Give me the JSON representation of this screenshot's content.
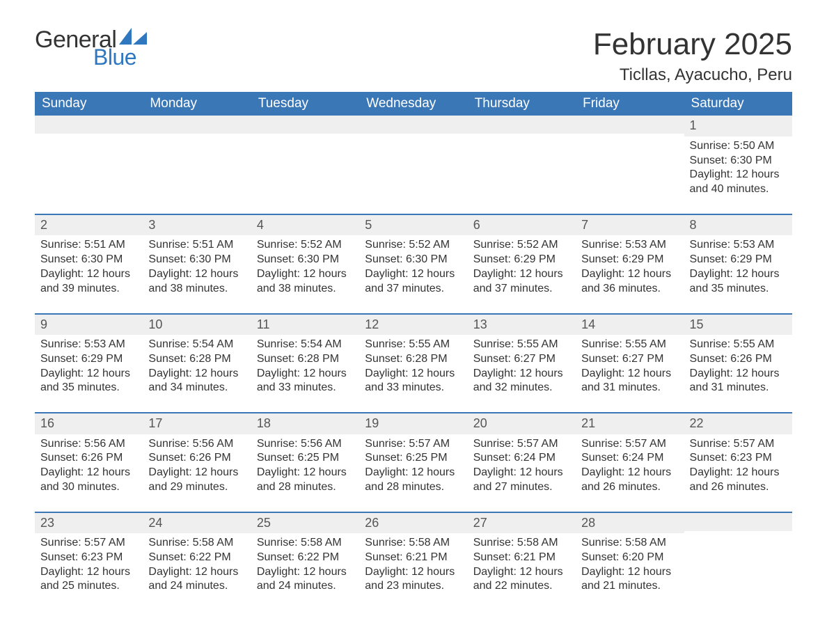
{
  "logo": {
    "word1": "General",
    "word2": "Blue"
  },
  "title": "February 2025",
  "location": "Ticllas, Ayacucho, Peru",
  "colors": {
    "header_bg": "#3a77b7",
    "header_text": "#ffffff",
    "row_border": "#3a77b7",
    "daynum_bg": "#efefef",
    "text": "#333333",
    "logo_blue": "#2f78bf",
    "page_bg": "#ffffff"
  },
  "typography": {
    "title_fontsize": 44,
    "location_fontsize": 24,
    "dayheader_fontsize": 19,
    "cell_fontsize": 16,
    "daynum_fontsize": 18,
    "logo_fontsize": 34
  },
  "day_headers": [
    "Sunday",
    "Monday",
    "Tuesday",
    "Wednesday",
    "Thursday",
    "Friday",
    "Saturday"
  ],
  "weeks": [
    [
      {
        "day": "",
        "sunrise": "",
        "sunset": "",
        "daylight1": "",
        "daylight2": ""
      },
      {
        "day": "",
        "sunrise": "",
        "sunset": "",
        "daylight1": "",
        "daylight2": ""
      },
      {
        "day": "",
        "sunrise": "",
        "sunset": "",
        "daylight1": "",
        "daylight2": ""
      },
      {
        "day": "",
        "sunrise": "",
        "sunset": "",
        "daylight1": "",
        "daylight2": ""
      },
      {
        "day": "",
        "sunrise": "",
        "sunset": "",
        "daylight1": "",
        "daylight2": ""
      },
      {
        "day": "",
        "sunrise": "",
        "sunset": "",
        "daylight1": "",
        "daylight2": ""
      },
      {
        "day": "1",
        "sunrise": "Sunrise: 5:50 AM",
        "sunset": "Sunset: 6:30 PM",
        "daylight1": "Daylight: 12 hours",
        "daylight2": "and 40 minutes."
      }
    ],
    [
      {
        "day": "2",
        "sunrise": "Sunrise: 5:51 AM",
        "sunset": "Sunset: 6:30 PM",
        "daylight1": "Daylight: 12 hours",
        "daylight2": "and 39 minutes."
      },
      {
        "day": "3",
        "sunrise": "Sunrise: 5:51 AM",
        "sunset": "Sunset: 6:30 PM",
        "daylight1": "Daylight: 12 hours",
        "daylight2": "and 38 minutes."
      },
      {
        "day": "4",
        "sunrise": "Sunrise: 5:52 AM",
        "sunset": "Sunset: 6:30 PM",
        "daylight1": "Daylight: 12 hours",
        "daylight2": "and 38 minutes."
      },
      {
        "day": "5",
        "sunrise": "Sunrise: 5:52 AM",
        "sunset": "Sunset: 6:30 PM",
        "daylight1": "Daylight: 12 hours",
        "daylight2": "and 37 minutes."
      },
      {
        "day": "6",
        "sunrise": "Sunrise: 5:52 AM",
        "sunset": "Sunset: 6:29 PM",
        "daylight1": "Daylight: 12 hours",
        "daylight2": "and 37 minutes."
      },
      {
        "day": "7",
        "sunrise": "Sunrise: 5:53 AM",
        "sunset": "Sunset: 6:29 PM",
        "daylight1": "Daylight: 12 hours",
        "daylight2": "and 36 minutes."
      },
      {
        "day": "8",
        "sunrise": "Sunrise: 5:53 AM",
        "sunset": "Sunset: 6:29 PM",
        "daylight1": "Daylight: 12 hours",
        "daylight2": "and 35 minutes."
      }
    ],
    [
      {
        "day": "9",
        "sunrise": "Sunrise: 5:53 AM",
        "sunset": "Sunset: 6:29 PM",
        "daylight1": "Daylight: 12 hours",
        "daylight2": "and 35 minutes."
      },
      {
        "day": "10",
        "sunrise": "Sunrise: 5:54 AM",
        "sunset": "Sunset: 6:28 PM",
        "daylight1": "Daylight: 12 hours",
        "daylight2": "and 34 minutes."
      },
      {
        "day": "11",
        "sunrise": "Sunrise: 5:54 AM",
        "sunset": "Sunset: 6:28 PM",
        "daylight1": "Daylight: 12 hours",
        "daylight2": "and 33 minutes."
      },
      {
        "day": "12",
        "sunrise": "Sunrise: 5:55 AM",
        "sunset": "Sunset: 6:28 PM",
        "daylight1": "Daylight: 12 hours",
        "daylight2": "and 33 minutes."
      },
      {
        "day": "13",
        "sunrise": "Sunrise: 5:55 AM",
        "sunset": "Sunset: 6:27 PM",
        "daylight1": "Daylight: 12 hours",
        "daylight2": "and 32 minutes."
      },
      {
        "day": "14",
        "sunrise": "Sunrise: 5:55 AM",
        "sunset": "Sunset: 6:27 PM",
        "daylight1": "Daylight: 12 hours",
        "daylight2": "and 31 minutes."
      },
      {
        "day": "15",
        "sunrise": "Sunrise: 5:55 AM",
        "sunset": "Sunset: 6:26 PM",
        "daylight1": "Daylight: 12 hours",
        "daylight2": "and 31 minutes."
      }
    ],
    [
      {
        "day": "16",
        "sunrise": "Sunrise: 5:56 AM",
        "sunset": "Sunset: 6:26 PM",
        "daylight1": "Daylight: 12 hours",
        "daylight2": "and 30 minutes."
      },
      {
        "day": "17",
        "sunrise": "Sunrise: 5:56 AM",
        "sunset": "Sunset: 6:26 PM",
        "daylight1": "Daylight: 12 hours",
        "daylight2": "and 29 minutes."
      },
      {
        "day": "18",
        "sunrise": "Sunrise: 5:56 AM",
        "sunset": "Sunset: 6:25 PM",
        "daylight1": "Daylight: 12 hours",
        "daylight2": "and 28 minutes."
      },
      {
        "day": "19",
        "sunrise": "Sunrise: 5:57 AM",
        "sunset": "Sunset: 6:25 PM",
        "daylight1": "Daylight: 12 hours",
        "daylight2": "and 28 minutes."
      },
      {
        "day": "20",
        "sunrise": "Sunrise: 5:57 AM",
        "sunset": "Sunset: 6:24 PM",
        "daylight1": "Daylight: 12 hours",
        "daylight2": "and 27 minutes."
      },
      {
        "day": "21",
        "sunrise": "Sunrise: 5:57 AM",
        "sunset": "Sunset: 6:24 PM",
        "daylight1": "Daylight: 12 hours",
        "daylight2": "and 26 minutes."
      },
      {
        "day": "22",
        "sunrise": "Sunrise: 5:57 AM",
        "sunset": "Sunset: 6:23 PM",
        "daylight1": "Daylight: 12 hours",
        "daylight2": "and 26 minutes."
      }
    ],
    [
      {
        "day": "23",
        "sunrise": "Sunrise: 5:57 AM",
        "sunset": "Sunset: 6:23 PM",
        "daylight1": "Daylight: 12 hours",
        "daylight2": "and 25 minutes."
      },
      {
        "day": "24",
        "sunrise": "Sunrise: 5:58 AM",
        "sunset": "Sunset: 6:22 PM",
        "daylight1": "Daylight: 12 hours",
        "daylight2": "and 24 minutes."
      },
      {
        "day": "25",
        "sunrise": "Sunrise: 5:58 AM",
        "sunset": "Sunset: 6:22 PM",
        "daylight1": "Daylight: 12 hours",
        "daylight2": "and 24 minutes."
      },
      {
        "day": "26",
        "sunrise": "Sunrise: 5:58 AM",
        "sunset": "Sunset: 6:21 PM",
        "daylight1": "Daylight: 12 hours",
        "daylight2": "and 23 minutes."
      },
      {
        "day": "27",
        "sunrise": "Sunrise: 5:58 AM",
        "sunset": "Sunset: 6:21 PM",
        "daylight1": "Daylight: 12 hours",
        "daylight2": "and 22 minutes."
      },
      {
        "day": "28",
        "sunrise": "Sunrise: 5:58 AM",
        "sunset": "Sunset: 6:20 PM",
        "daylight1": "Daylight: 12 hours",
        "daylight2": "and 21 minutes."
      },
      {
        "day": "",
        "sunrise": "",
        "sunset": "",
        "daylight1": "",
        "daylight2": ""
      }
    ]
  ]
}
